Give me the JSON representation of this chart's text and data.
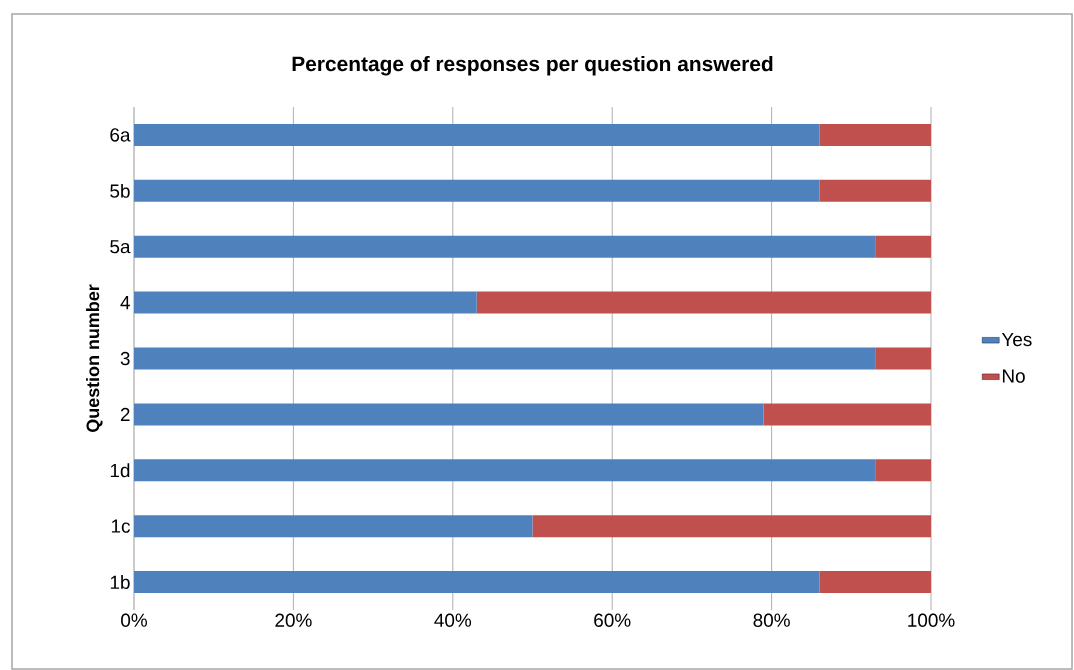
{
  "chart_data": {
    "type": "bar",
    "orientation": "horizontal",
    "stacked": true,
    "title": "Percentage of responses per question answered",
    "ylabel": "Question number",
    "categories": [
      "6a",
      "5b",
      "5a",
      "4",
      "3",
      "2",
      "1d",
      "1c",
      "1b"
    ],
    "series": [
      {
        "name": "Yes",
        "color": "#4f81bd",
        "values": [
          86,
          86,
          93,
          43,
          93,
          79,
          93,
          50,
          86
        ]
      },
      {
        "name": "No",
        "color": "#c0504d",
        "values": [
          14,
          14,
          7,
          57,
          7,
          21,
          7,
          50,
          14
        ]
      }
    ],
    "xlim": [
      0,
      100
    ],
    "xticks": [
      {
        "value": 0,
        "label": "0%"
      },
      {
        "value": 20,
        "label": "20%"
      },
      {
        "value": 40,
        "label": "40%"
      },
      {
        "value": 60,
        "label": "60%"
      },
      {
        "value": 80,
        "label": "80%"
      },
      {
        "value": 100,
        "label": "100%"
      }
    ],
    "grid": "x",
    "legend": "right"
  }
}
